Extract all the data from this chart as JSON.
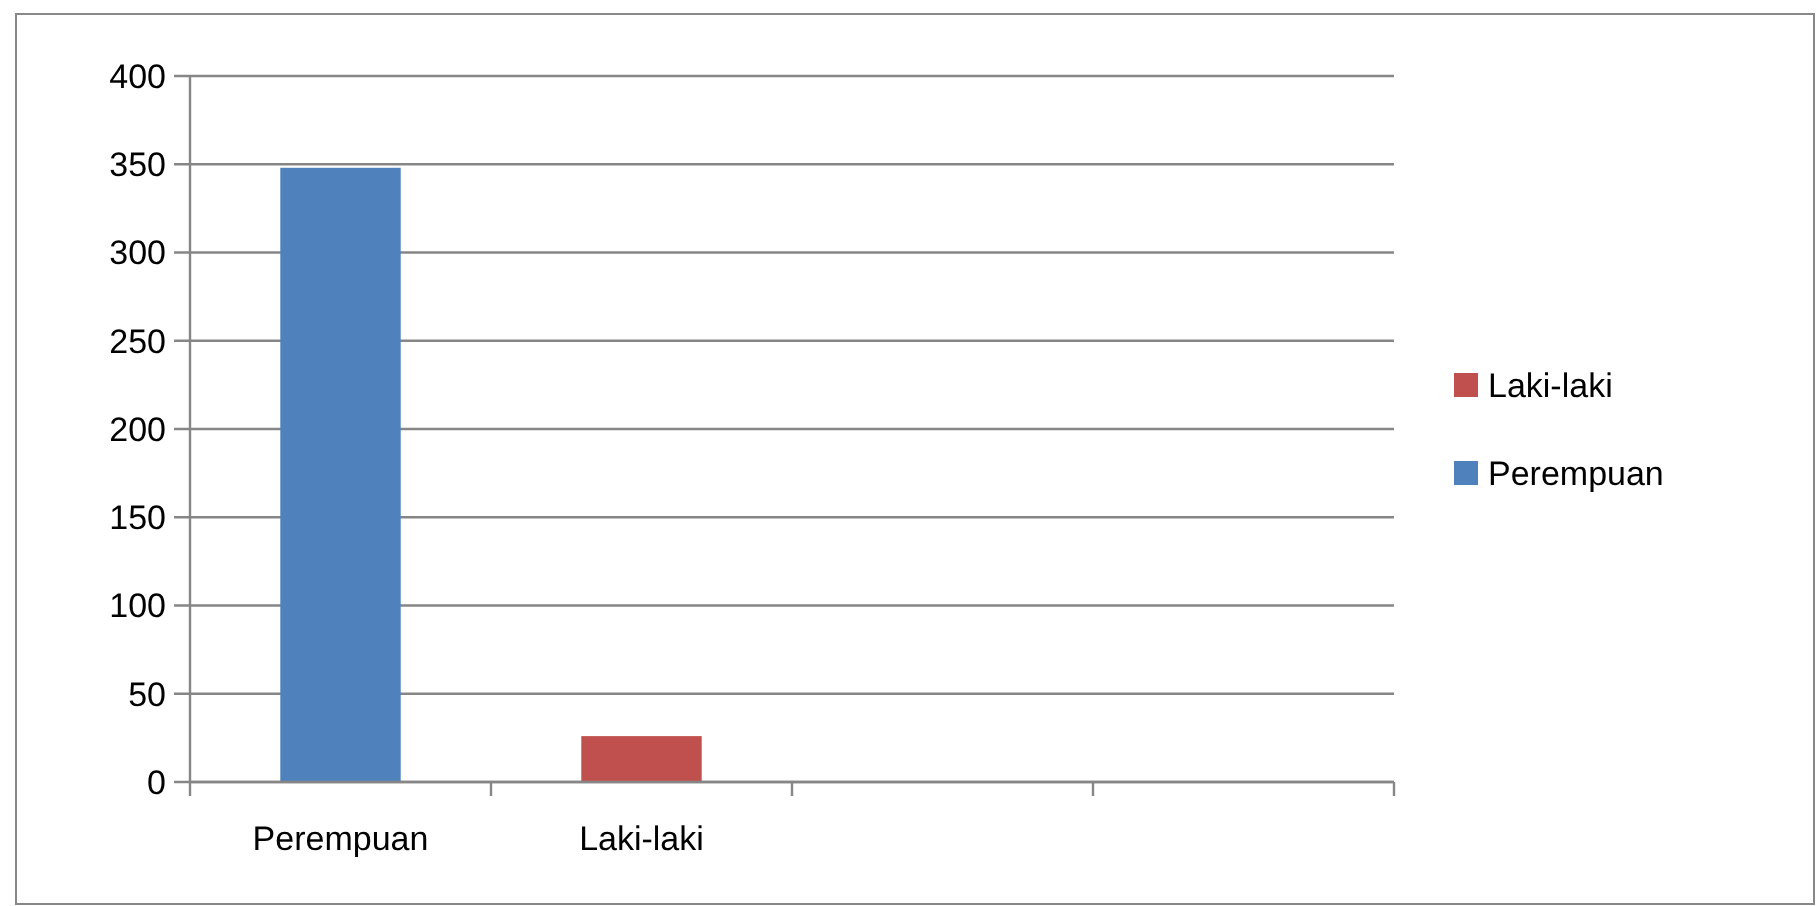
{
  "chart_data": {
    "type": "bar",
    "stacked": true,
    "categories": [
      "Perempuan",
      "Laki-laki",
      null,
      null
    ],
    "series": [
      {
        "name": "Perempuan",
        "color": "#4f81bd",
        "values": [
          348,
          null,
          null,
          null
        ]
      },
      {
        "name": "Laki-laki",
        "color": "#c0504d",
        "values": [
          null,
          26,
          null,
          null
        ]
      }
    ],
    "ylim": [
      0,
      400
    ],
    "yticks": [
      0,
      50,
      100,
      150,
      200,
      250,
      300,
      350,
      400
    ],
    "grid": "y",
    "legend": "right"
  }
}
